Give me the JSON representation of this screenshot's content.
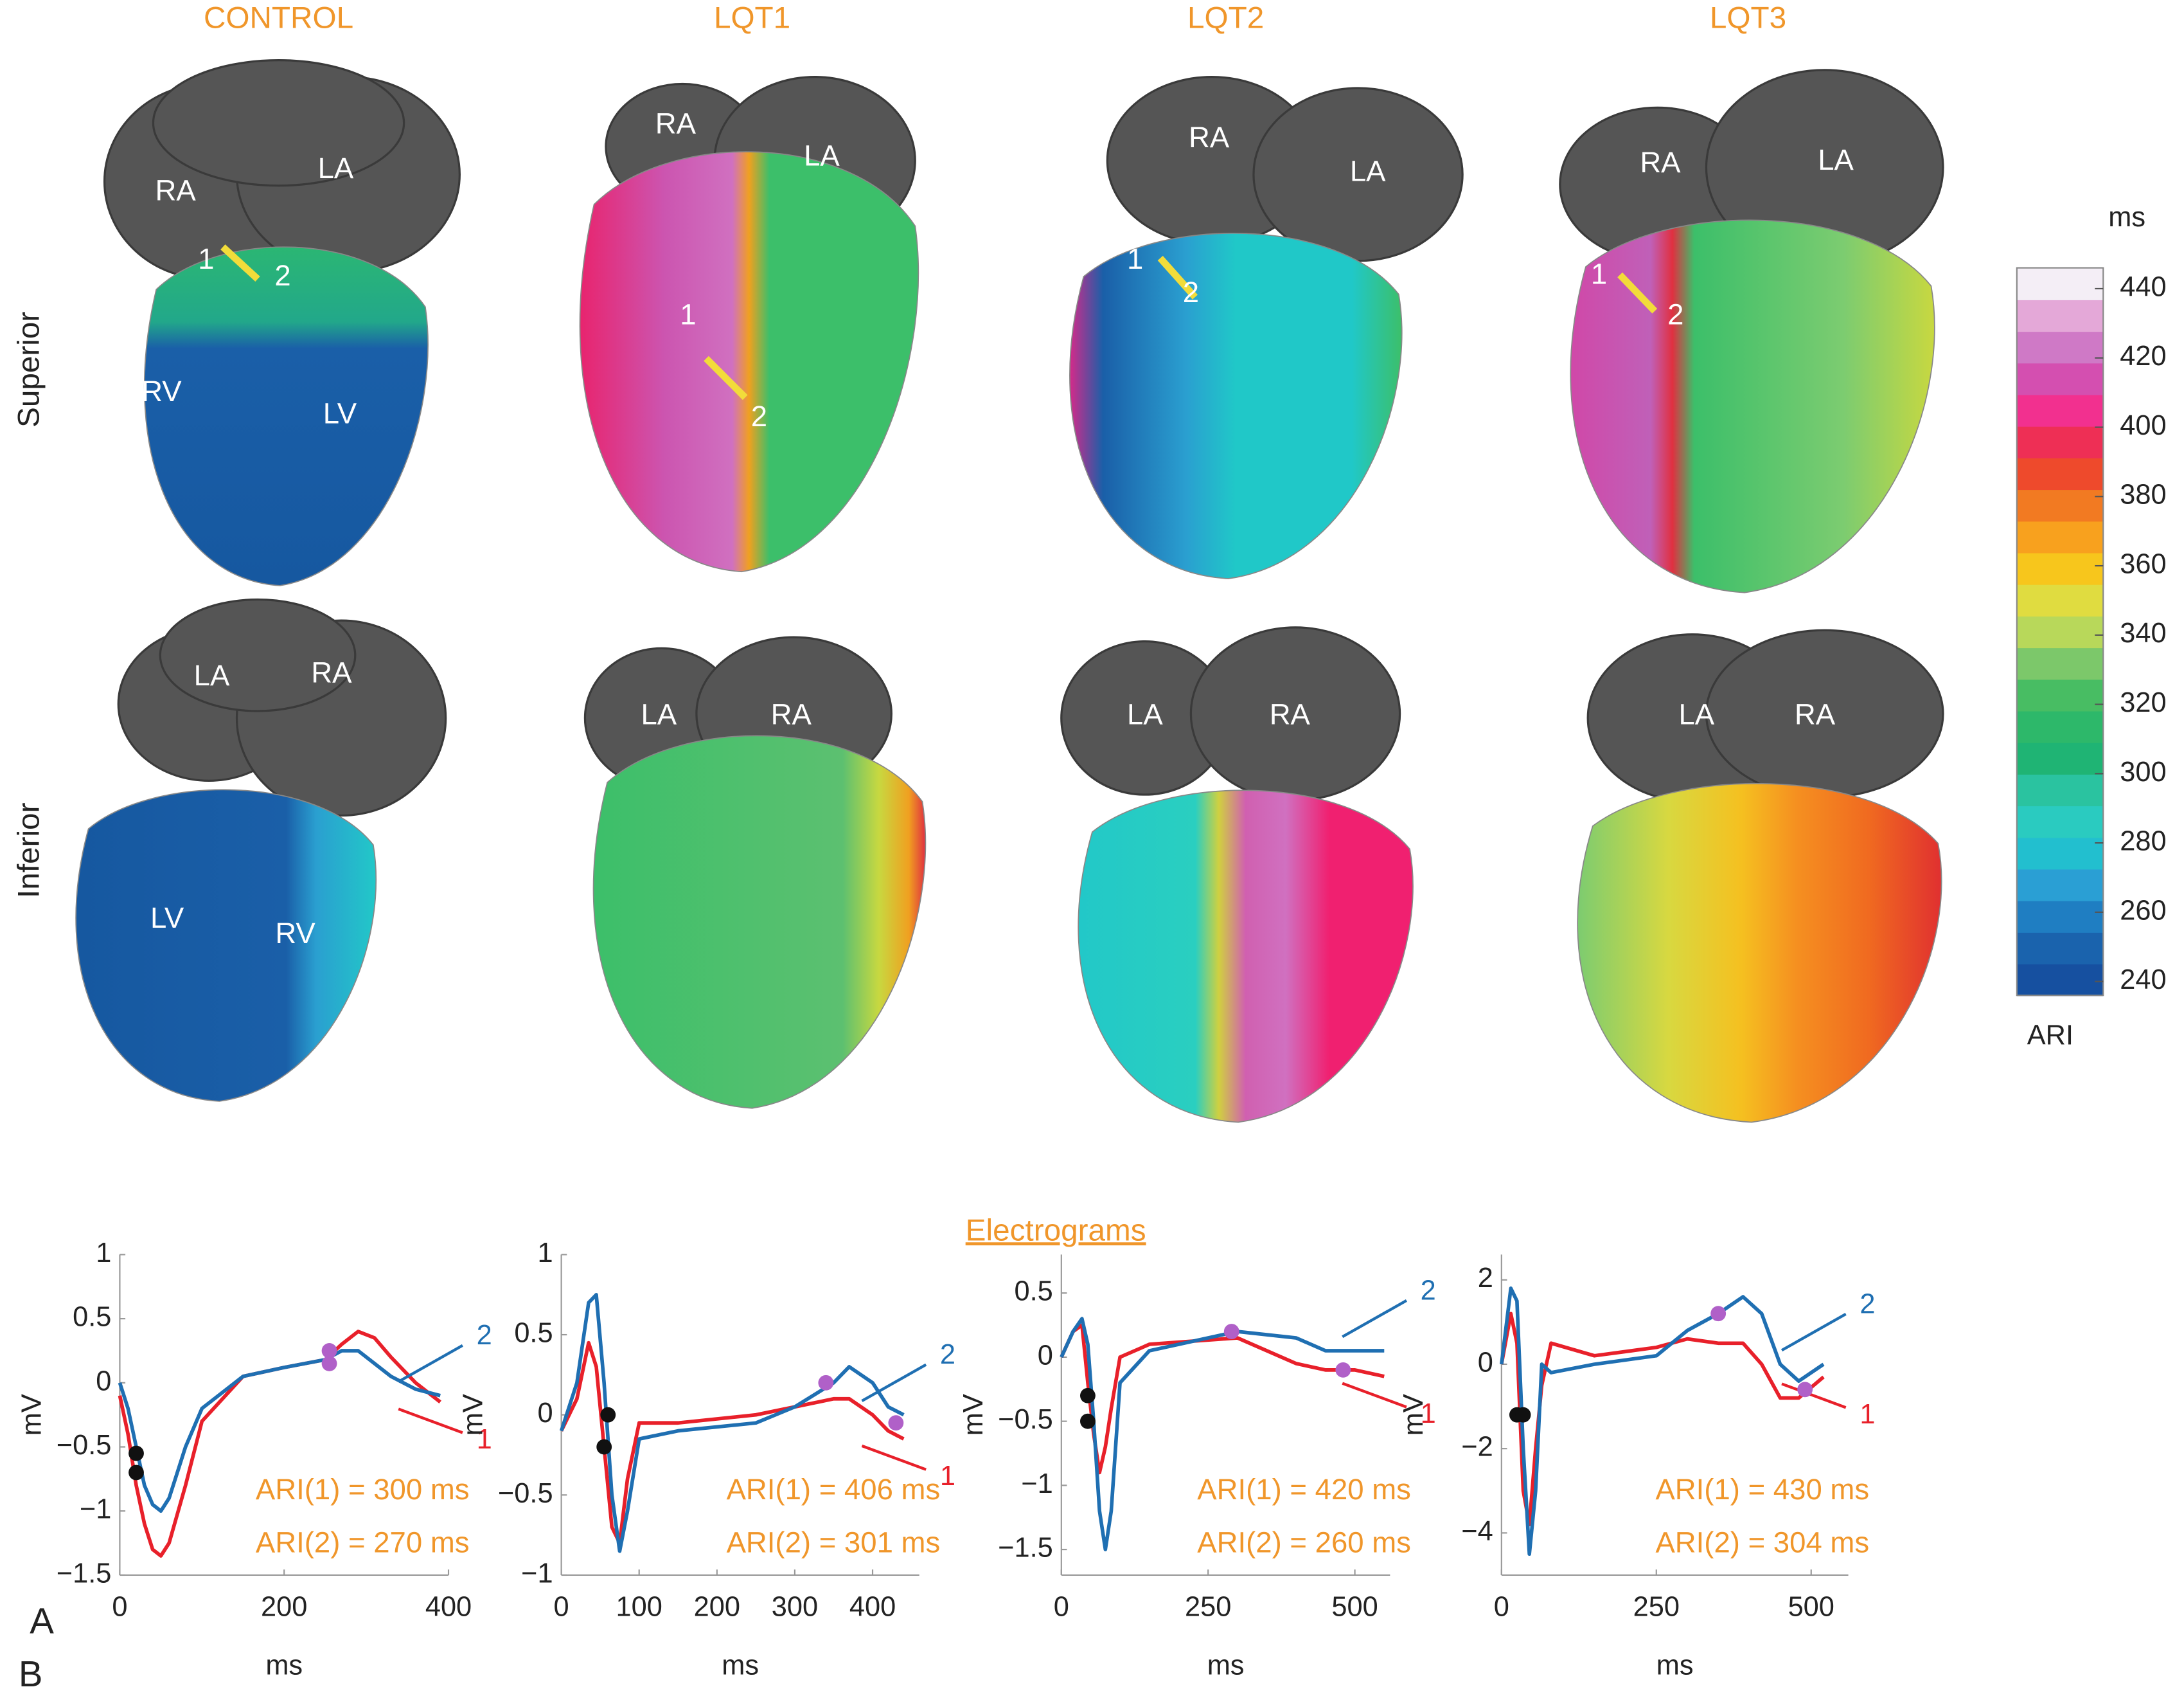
{
  "panel_a": {
    "label": "A",
    "columns": [
      "CONTROL",
      "LQT1",
      "LQT2",
      "LQT3"
    ],
    "rows": [
      "Superior",
      "Inferior"
    ],
    "hearts": [
      {
        "labels": [
          "RA",
          "LA",
          "1",
          "2",
          "RV",
          "LV"
        ]
      },
      {
        "labels": [
          "RA",
          "LA",
          "1",
          "2"
        ]
      },
      {
        "labels": [
          "RA",
          "LA",
          "1",
          "2"
        ]
      },
      {
        "labels": [
          "RA",
          "LA",
          "1",
          "2"
        ]
      },
      {
        "labels": [
          "LA",
          "RA",
          "LV",
          "RV"
        ]
      },
      {
        "labels": [
          "LA",
          "RA"
        ]
      },
      {
        "labels": [
          "LA",
          "RA"
        ]
      },
      {
        "labels": [
          "LA",
          "RA"
        ]
      }
    ]
  },
  "colorbar": {
    "unit": "ms",
    "label": "ARI",
    "lim": [
      236,
      446
    ],
    "ticks": [
      240,
      260,
      280,
      300,
      320,
      340,
      360,
      380,
      400,
      420,
      440
    ],
    "colors": [
      "#1650a0",
      "#1a63ad",
      "#1f7ec2",
      "#2a9fd4",
      "#22bfcf",
      "#2acbc0",
      "#2ac3a0",
      "#1fb474",
      "#2db86a",
      "#48bd63",
      "#7cc86a",
      "#b8d85a",
      "#e0dc40",
      "#f7c61c",
      "#f8a11e",
      "#f27a22",
      "#ee4a2c",
      "#ee2f55",
      "#f2308f",
      "#d44fb0",
      "#cf79c6",
      "#e4a8d8",
      "#f4eef6"
    ]
  },
  "panel_b": {
    "label": "B",
    "title": "Electrograms"
  },
  "chart_data": [
    {
      "type": "line",
      "x_label": "ms",
      "y_label": "mV",
      "x": [
        0,
        10,
        20,
        30,
        40,
        50,
        60,
        80,
        100,
        150,
        200,
        250,
        270,
        290,
        310,
        330,
        360,
        390
      ],
      "series": [
        {
          "name": "1",
          "color": "#e8202a",
          "values": [
            -0.1,
            -0.4,
            -0.8,
            -1.1,
            -1.3,
            -1.35,
            -1.25,
            -0.8,
            -0.3,
            0.05,
            0.12,
            0.18,
            0.3,
            0.4,
            0.35,
            0.2,
            0,
            -0.15
          ]
        },
        {
          "name": "2",
          "color": "#1f6fb2",
          "values": [
            0,
            -0.2,
            -0.5,
            -0.8,
            -0.95,
            -1.0,
            -0.9,
            -0.5,
            -0.2,
            0.05,
            0.12,
            0.18,
            0.25,
            0.25,
            0.15,
            0.05,
            -0.05,
            -0.1
          ]
        }
      ],
      "markers": [
        {
          "x": 20,
          "y": -0.55,
          "color": "#111111"
        },
        {
          "x": 20,
          "y": -0.7,
          "color": "#111111"
        },
        {
          "x": 255,
          "y": 0.15,
          "color": "#b060c8"
        },
        {
          "x": 255,
          "y": 0.25,
          "color": "#b060c8"
        }
      ],
      "xlim": [
        0,
        400
      ],
      "ylim": [
        -1.5,
        1
      ],
      "xticks": [
        0,
        200,
        400
      ],
      "yticks": [
        {
          "value": -1.5,
          "label": "−1.5"
        },
        {
          "value": -1,
          "label": "−1"
        },
        {
          "value": -0.5,
          "label": "−0.5"
        },
        0,
        0.5,
        1
      ],
      "annotations": [
        "ARI(1) = 300 ms",
        "ARI(2) = 270 ms"
      ]
    },
    {
      "type": "line",
      "x_label": "ms",
      "y_label": "mV",
      "x": [
        0,
        20,
        35,
        45,
        55,
        65,
        75,
        85,
        100,
        150,
        250,
        300,
        350,
        370,
        400,
        420,
        440
      ],
      "series": [
        {
          "name": "1",
          "color": "#e8202a",
          "values": [
            -0.1,
            0.1,
            0.45,
            0.3,
            -0.2,
            -0.7,
            -0.8,
            -0.4,
            -0.05,
            -0.05,
            0,
            0.05,
            0.1,
            0.1,
            0,
            -0.1,
            -0.15
          ]
        },
        {
          "name": "2",
          "color": "#1f6fb2",
          "values": [
            -0.1,
            0.2,
            0.7,
            0.75,
            0.2,
            -0.5,
            -0.85,
            -0.6,
            -0.15,
            -0.1,
            -0.05,
            0.05,
            0.2,
            0.3,
            0.2,
            0.05,
            0
          ]
        }
      ],
      "markers": [
        {
          "x": 60,
          "y": 0,
          "color": "#111111"
        },
        {
          "x": 55,
          "y": -0.2,
          "color": "#111111"
        },
        {
          "x": 340,
          "y": 0.2,
          "color": "#b060c8"
        },
        {
          "x": 430,
          "y": -0.05,
          "color": "#b060c8"
        }
      ],
      "xlim": [
        0,
        460
      ],
      "ylim": [
        -1,
        1
      ],
      "xticks": [
        0,
        100,
        200,
        300,
        400
      ],
      "yticks": [
        {
          "value": -1,
          "label": "−1"
        },
        {
          "value": -0.5,
          "label": "−0.5"
        },
        0,
        0.5,
        1
      ],
      "annotations": [
        "ARI(1) = 406 ms",
        "ARI(2) = 301 ms"
      ]
    },
    {
      "type": "line",
      "x_label": "ms",
      "y_label": "mV",
      "x": [
        0,
        20,
        35,
        45,
        55,
        65,
        75,
        85,
        100,
        150,
        300,
        400,
        450,
        500,
        550
      ],
      "series": [
        {
          "name": "1",
          "color": "#e8202a",
          "values": [
            0,
            0.2,
            0.25,
            -0.2,
            -0.6,
            -0.9,
            -0.7,
            -0.4,
            0,
            0.1,
            0.15,
            -0.05,
            -0.1,
            -0.1,
            -0.15
          ]
        },
        {
          "name": "2",
          "color": "#1f6fb2",
          "values": [
            0,
            0.2,
            0.3,
            0.1,
            -0.5,
            -1.2,
            -1.5,
            -1.2,
            -0.2,
            0.05,
            0.2,
            0.15,
            0.05,
            0.05,
            0.05
          ]
        }
      ],
      "markers": [
        {
          "x": 45,
          "y": -0.3,
          "color": "#111111"
        },
        {
          "x": 45,
          "y": -0.5,
          "color": "#111111"
        },
        {
          "x": 290,
          "y": 0.2,
          "color": "#b060c8"
        },
        {
          "x": 480,
          "y": -0.1,
          "color": "#b060c8"
        }
      ],
      "xlim": [
        0,
        560
      ],
      "ylim": [
        -1.7,
        0.8
      ],
      "xticks": [
        0,
        250,
        500
      ],
      "yticks": [
        {
          "value": -1.5,
          "label": "−1.5"
        },
        {
          "value": -1,
          "label": "−1"
        },
        {
          "value": -0.5,
          "label": "−0.5"
        },
        0,
        0.5
      ],
      "annotations": [
        "ARI(1) = 420 ms",
        "ARI(2) = 260 ms"
      ]
    },
    {
      "type": "line",
      "x_label": "ms",
      "y_label": "mV",
      "x": [
        0,
        15,
        25,
        35,
        45,
        55,
        65,
        80,
        150,
        250,
        300,
        350,
        390,
        420,
        450,
        480,
        520
      ],
      "series": [
        {
          "name": "1",
          "color": "#e8202a",
          "values": [
            0,
            1.2,
            0.5,
            -3,
            -3.8,
            -2,
            -0.5,
            0.5,
            0.2,
            0.4,
            0.6,
            0.5,
            0.5,
            0,
            -0.8,
            -0.8,
            -0.3
          ]
        },
        {
          "name": "2",
          "color": "#1f6fb2",
          "values": [
            0,
            1.8,
            1.5,
            -2,
            -4.5,
            -3,
            0,
            -0.2,
            0,
            0.2,
            0.8,
            1.2,
            1.6,
            1.2,
            0,
            -0.4,
            0
          ]
        }
      ],
      "markers": [
        {
          "x": 25,
          "y": -1.2,
          "color": "#111111"
        },
        {
          "x": 35,
          "y": -1.2,
          "color": "#111111"
        },
        {
          "x": 350,
          "y": 1.2,
          "color": "#b060c8"
        },
        {
          "x": 490,
          "y": -0.6,
          "color": "#b060c8"
        }
      ],
      "xlim": [
        0,
        560
      ],
      "ylim": [
        -5,
        2.6
      ],
      "xticks": [
        0,
        250,
        500
      ],
      "yticks": [
        {
          "value": -4,
          "label": "−4"
        },
        {
          "value": -2,
          "label": "−2"
        },
        0,
        2
      ],
      "annotations": [
        "ARI(1) = 430 ms",
        "ARI(2) = 304 ms"
      ]
    }
  ]
}
